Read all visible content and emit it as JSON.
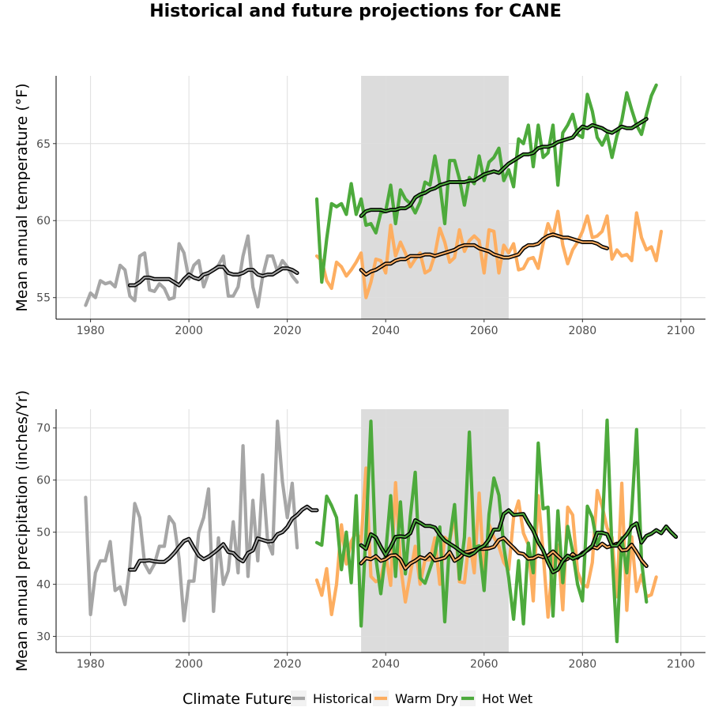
{
  "chart_data": [
    {
      "type": "line",
      "title": "Historical and future projections for CANE",
      "xlabel": "",
      "ylabel": "Mean annual temperature (°F)",
      "xlim": [
        1973,
        2105
      ],
      "ylim": [
        53.6,
        69.4
      ],
      "xticks": [
        1980,
        2000,
        2020,
        2040,
        2060,
        2080,
        2100
      ],
      "yticks": [
        55,
        60,
        65
      ],
      "grid": true,
      "shaded_region": [
        2035,
        2065
      ],
      "legend_position": "bottom",
      "series": [
        {
          "name": "Historical",
          "color": "#a6a6a6",
          "x_start": 1979,
          "values": [
            54.5,
            55.3,
            55.0,
            56.1,
            55.9,
            56.0,
            55.7,
            57.1,
            56.8,
            55.1,
            54.8,
            57.7,
            57.9,
            55.5,
            55.4,
            55.9,
            55.6,
            54.9,
            55.0,
            58.5,
            57.9,
            56.2,
            57.1,
            57.4,
            55.7,
            56.6,
            56.8,
            57.1,
            57.7,
            55.1,
            55.1,
            55.7,
            57.7,
            59.0,
            55.7,
            54.4,
            56.4,
            57.7,
            57.7,
            56.7,
            57.4,
            57.0,
            56.4,
            56.0
          ],
          "smooth_x_start": 1988,
          "smooth": [
            55.8,
            55.8,
            56.0,
            56.3,
            56.3,
            56.2,
            56.2,
            56.2,
            56.2,
            56.0,
            55.8,
            56.2,
            56.5,
            56.3,
            56.2,
            56.5,
            56.6,
            56.8,
            57.0,
            57.0,
            56.6,
            56.5,
            56.5,
            56.6,
            56.8,
            56.8,
            56.5,
            56.4,
            56.5,
            56.5,
            56.7,
            56.9,
            56.9,
            56.8,
            56.6
          ]
        },
        {
          "name": "Warm Dry",
          "color": "#fdae61",
          "x_start": 2026,
          "values": [
            57.7,
            57.4,
            56.1,
            55.6,
            57.3,
            57.0,
            56.4,
            56.8,
            57.3,
            57.9,
            55.0,
            56.0,
            57.5,
            57.4,
            56.6,
            59.7,
            57.7,
            58.6,
            57.9,
            57.0,
            57.5,
            57.9,
            56.6,
            56.8,
            57.8,
            59.5,
            58.6,
            57.3,
            57.6,
            59.4,
            58.0,
            58.7,
            59.0,
            58.7,
            56.6,
            59.4,
            59.3,
            56.6,
            58.4,
            57.9,
            58.5,
            56.8,
            56.9,
            57.5,
            57.6,
            56.9,
            58.5,
            59.8,
            59.0,
            60.6,
            58.4,
            57.2,
            58.1,
            58.6,
            59.3,
            60.3,
            58.9,
            59.0,
            59.3,
            60.3,
            57.5,
            58.1,
            57.7,
            57.8,
            57.4,
            60.5,
            58.9,
            58.1,
            58.3,
            57.4,
            59.3
          ],
          "smooth_x_start": 2035,
          "smooth": [
            56.8,
            56.5,
            56.7,
            56.8,
            57.0,
            57.2,
            57.2,
            57.4,
            57.5,
            57.5,
            57.7,
            57.7,
            57.7,
            57.8,
            57.8,
            57.7,
            57.8,
            57.9,
            58.0,
            58.1,
            58.3,
            58.4,
            58.4,
            58.4,
            58.2,
            58.1,
            58.0,
            57.8,
            57.7,
            57.6,
            57.6,
            57.7,
            57.8,
            58.2,
            58.4,
            58.4,
            58.5,
            58.8,
            59.0,
            59.1,
            59.0,
            58.9,
            58.9,
            58.8,
            58.7,
            58.6,
            58.6,
            58.6,
            58.5,
            58.3,
            58.2
          ]
        },
        {
          "name": "Hot Wet",
          "color": "#4daa3c",
          "x_start": 2026,
          "values": [
            61.4,
            56.0,
            58.8,
            61.1,
            60.9,
            61.1,
            60.4,
            62.4,
            60.4,
            61.4,
            59.7,
            59.8,
            59.2,
            60.5,
            60.6,
            62.3,
            59.8,
            62.0,
            61.4,
            61.1,
            60.5,
            61.2,
            62.5,
            62.3,
            64.2,
            62.4,
            59.8,
            63.9,
            63.9,
            62.7,
            61.0,
            62.8,
            62.4,
            64.2,
            62.6,
            63.8,
            64.1,
            64.7,
            62.6,
            63.3,
            62.2,
            65.3,
            65.0,
            66.2,
            63.5,
            66.2,
            64.1,
            64.4,
            66.2,
            62.3,
            65.7,
            66.2,
            66.9,
            65.6,
            65.4,
            68.2,
            67.1,
            65.4,
            64.9,
            65.6,
            64.1,
            65.5,
            66.5,
            68.3,
            67.2,
            66.2,
            65.6,
            66.9,
            68.1,
            68.8
          ],
          "smooth_x_start": 2035,
          "smooth": [
            60.3,
            60.6,
            60.7,
            60.7,
            60.7,
            60.6,
            60.7,
            60.7,
            60.8,
            60.8,
            61.0,
            61.5,
            61.7,
            61.8,
            62.0,
            62.1,
            62.3,
            62.4,
            62.5,
            62.5,
            62.5,
            62.5,
            62.6,
            62.6,
            62.8,
            63.0,
            63.1,
            63.2,
            63.1,
            63.4,
            63.7,
            63.9,
            64.1,
            64.3,
            64.3,
            64.4,
            64.7,
            64.8,
            64.8,
            64.9,
            65.1,
            65.2,
            65.3,
            65.4,
            65.8,
            66.1,
            66.0,
            66.2,
            66.1,
            66.0,
            65.8,
            65.7,
            65.9,
            66.1,
            66.0,
            66.0,
            66.2,
            66.4,
            66.6
          ]
        }
      ]
    },
    {
      "type": "line",
      "title": "",
      "xlabel": "",
      "ylabel": "Mean annual precipitation (inches/Yr)",
      "xlim": [
        1973,
        2105
      ],
      "ylim": [
        26.9,
        73.6
      ],
      "xticks": [
        1980,
        2000,
        2020,
        2040,
        2060,
        2080,
        2100
      ],
      "yticks": [
        30,
        40,
        50,
        60,
        70
      ],
      "grid": true,
      "shaded_region": [
        2035,
        2065
      ],
      "legend_position": "bottom",
      "series": [
        {
          "name": "Historical",
          "color": "#a6a6a6",
          "x_start": 1979,
          "values": [
            56.7,
            34.2,
            42.2,
            44.5,
            44.5,
            48.2,
            38.8,
            39.5,
            36.1,
            43.6,
            55.5,
            52.8,
            43.9,
            42.2,
            43.9,
            47.3,
            47.3,
            53.0,
            51.6,
            44.9,
            33.0,
            40.6,
            40.6,
            50.0,
            52.8,
            58.3,
            34.8,
            48.9,
            40.0,
            42.6,
            52.0,
            42.2,
            66.6,
            41.5,
            56.1,
            44.5,
            61.0,
            48.2,
            45.8,
            71.3,
            59.7,
            52.8,
            59.4,
            47.0
          ],
          "smooth_x_start": 1988,
          "smooth": [
            42.8,
            42.8,
            44.5,
            44.5,
            44.6,
            44.4,
            44.3,
            44.3,
            45.0,
            46.0,
            47.2,
            48.3,
            48.7,
            47.0,
            45.5,
            44.8,
            45.3,
            46.0,
            46.8,
            47.7,
            46.2,
            46.0,
            45.0,
            44.4,
            46.0,
            46.5,
            48.8,
            48.5,
            48.2,
            48.3,
            49.6,
            50.0,
            51.0,
            52.6,
            53.3,
            54.3,
            54.9,
            54.2,
            54.2
          ]
        },
        {
          "name": "Warm Dry",
          "color": "#fdae61",
          "x_start": 2026,
          "values": [
            40.8,
            37.9,
            43.0,
            34.2,
            40.0,
            51.4,
            43.9,
            48.2,
            50.0,
            48.2,
            62.3,
            41.5,
            40.5,
            41.0,
            45.8,
            39.8,
            59.5,
            43.8,
            36.6,
            42.0,
            47.3,
            40.0,
            44.7,
            44.7,
            48.9,
            40.0,
            49.0,
            48.2,
            53.3,
            40.5,
            40.3,
            48.8,
            42.2,
            57.5,
            42.0,
            51.5,
            49.0,
            47.3,
            44.2,
            42.8,
            52.8,
            56.0,
            49.8,
            47.6,
            36.8,
            57.0,
            46.1,
            33.7,
            45.4,
            47.5,
            35.1,
            54.8,
            53.3,
            42.4,
            40.0,
            39.5,
            44.2,
            58.0,
            55.0,
            50.8,
            49.0,
            37.6,
            59.4,
            35.0,
            49.1,
            38.6,
            41.8,
            37.6,
            38.0,
            41.4
          ],
          "smooth_x_start": 2035,
          "smooth": [
            44.0,
            45.0,
            44.8,
            45.4,
            44.5,
            44.8,
            45.5,
            45.6,
            44.8,
            43.0,
            44.0,
            44.5,
            45.2,
            44.9,
            45.8,
            44.6,
            44.8,
            45.1,
            46.2,
            44.5,
            45.1,
            46.1,
            46.3,
            46.6,
            46.8,
            46.8,
            46.9,
            47.2,
            48.5,
            48.9,
            47.9,
            47.0,
            46.0,
            45.8,
            44.9,
            45.0,
            45.5,
            45.2,
            45.5,
            46.3,
            45.4,
            44.5,
            44.9,
            45.8,
            45.1,
            46.0,
            46.5,
            47.2,
            46.9,
            47.8,
            47.1,
            47.4,
            47.8,
            46.5,
            46.6,
            47.6,
            46.2,
            44.6,
            43.5
          ]
        },
        {
          "name": "Hot Wet",
          "color": "#4daa3c",
          "x_start": 2026,
          "values": [
            48.0,
            47.5,
            56.9,
            55.1,
            52.8,
            42.8,
            50.0,
            40.3,
            57.0,
            32.0,
            49.8,
            71.3,
            45.0,
            38.2,
            46.0,
            57.0,
            41.5,
            55.8,
            42.0,
            53.0,
            61.5,
            41.2,
            40.2,
            43.0,
            45.8,
            51.0,
            32.8,
            48.5,
            55.3,
            41.0,
            49.0,
            69.2,
            47.0,
            47.4,
            38.8,
            53.4,
            60.4,
            57.1,
            47.2,
            41.3,
            33.3,
            44.5,
            32.4,
            47.9,
            42.2,
            67.1,
            54.5,
            54.8,
            33.9,
            54.1,
            40.3,
            51.1,
            46.3,
            40.0,
            36.8,
            55.0,
            52.8,
            47.6,
            50.1,
            71.5,
            46.3,
            29.0,
            48.9,
            42.2,
            53.7,
            69.7,
            44.5,
            36.6
          ],
          "smooth_x_start": 2035,
          "smooth": [
            47.5,
            46.8,
            49.6,
            49.0,
            47.2,
            45.6,
            47.2,
            49.1,
            49.2,
            49.1,
            49.8,
            52.3,
            51.8,
            51.2,
            51.2,
            50.9,
            49.5,
            48.4,
            47.8,
            47.2,
            46.5,
            45.8,
            45.5,
            46.0,
            46.9,
            47.4,
            48.6,
            50.5,
            50.5,
            53.5,
            54.2,
            53.3,
            53.4,
            53.5,
            51.8,
            50.3,
            48.1,
            46.5,
            44.2,
            42.3,
            42.8,
            44.5,
            45.5,
            44.9,
            45.3,
            45.7,
            46.6,
            47.4,
            49.9,
            49.9,
            49.6,
            47.4,
            47.4,
            48.5,
            49.6,
            51.1,
            51.7,
            48.0,
            49.3,
            49.7,
            50.4,
            49.8,
            51.1,
            50.0,
            49.1
          ]
        }
      ]
    }
  ],
  "legend": {
    "title": "Climate Future",
    "items": [
      {
        "label": "Historical",
        "color": "#a6a6a6"
      },
      {
        "label": "Warm Dry",
        "color": "#fdae61"
      },
      {
        "label": "Hot Wet",
        "color": "#4daa3c"
      }
    ]
  }
}
